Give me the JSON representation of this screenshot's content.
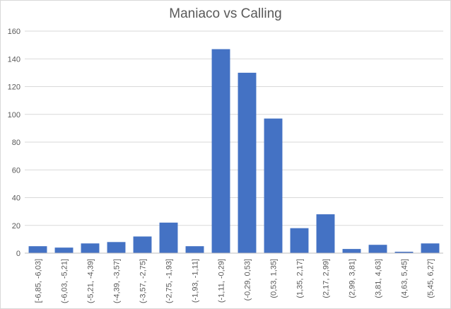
{
  "chart_data": {
    "type": "bar",
    "title": "Maniaco vs Calling",
    "xlabel": "",
    "ylabel": "",
    "ylim": [
      0,
      160
    ],
    "yticks": [
      0,
      20,
      40,
      60,
      80,
      100,
      120,
      140,
      160
    ],
    "grid": true,
    "legend": "none",
    "bar_color": "#4472c4",
    "categories": [
      "[-6,85, -6,03]",
      "(-6,03, -5,21]",
      "(-5,21, -4,39]",
      "(-4,39, -3,57]",
      "(-3,57, -2,75]",
      "(-2,75, -1,93]",
      "(-1,93, -1,11]",
      "(-1,11, -0,29]",
      "(-0,29, 0,53]",
      "(0,53, 1,35]",
      "(1,35, 2,17]",
      "(2,17, 2,99]",
      "(2,99, 3,81]",
      "(3,81, 4,63]",
      "(4,63, 5,45]",
      "(5,45, 6,27]"
    ],
    "values": [
      5,
      4,
      7,
      8,
      12,
      22,
      5,
      147,
      130,
      97,
      18,
      28,
      3,
      6,
      1,
      7
    ]
  }
}
